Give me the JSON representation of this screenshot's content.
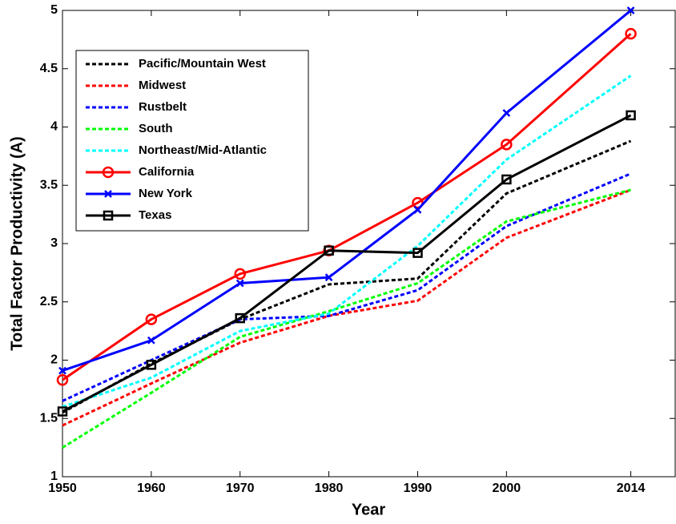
{
  "chart_data": {
    "type": "line",
    "x_label": "Year",
    "y_label": "Total Factor Productivity (A)",
    "x": [
      1950,
      1960,
      1970,
      1980,
      1990,
      2000,
      2014
    ],
    "xlim": [
      1950,
      2019
    ],
    "xticks": [
      1950,
      1960,
      1970,
      1980,
      1990,
      2000,
      2014
    ],
    "ylim": [
      1,
      5
    ],
    "yticks": [
      1,
      1.5,
      2,
      2.5,
      3,
      3.5,
      4,
      4.5,
      5
    ],
    "legend": "upper left",
    "series": [
      {
        "name": "Pacific/Mountain West",
        "color": "#000000",
        "style": "dashed",
        "marker": "none",
        "values": [
          1.55,
          1.97,
          2.35,
          2.65,
          2.7,
          3.43,
          3.88
        ]
      },
      {
        "name": "Midwest",
        "color": "#ff0000",
        "style": "dashed",
        "marker": "none",
        "values": [
          1.44,
          1.8,
          2.15,
          2.38,
          2.51,
          3.05,
          3.46
        ]
      },
      {
        "name": "Rustbelt",
        "color": "#0000ff",
        "style": "dashed",
        "marker": "none",
        "values": [
          1.65,
          2.0,
          2.35,
          2.38,
          2.6,
          3.15,
          3.6
        ]
      },
      {
        "name": "South",
        "color": "#00ff00",
        "style": "dashed",
        "marker": "none",
        "values": [
          1.25,
          1.72,
          2.2,
          2.42,
          2.66,
          3.19,
          3.46
        ]
      },
      {
        "name": "Northeast/Mid-Atlantic",
        "color": "#00ffff",
        "style": "dashed",
        "marker": "none",
        "values": [
          1.6,
          1.85,
          2.25,
          2.4,
          2.98,
          3.72,
          4.44
        ]
      },
      {
        "name": "California",
        "color": "#ff0000",
        "style": "solid",
        "marker": "circle",
        "values": [
          1.83,
          2.35,
          2.74,
          2.94,
          3.35,
          3.85,
          4.8
        ]
      },
      {
        "name": "New York",
        "color": "#0000ff",
        "style": "solid",
        "marker": "x",
        "values": [
          1.91,
          2.17,
          2.66,
          2.71,
          3.29,
          4.12,
          5.0
        ]
      },
      {
        "name": "Texas",
        "color": "#000000",
        "style": "solid",
        "marker": "square",
        "values": [
          1.56,
          1.96,
          2.36,
          2.94,
          2.92,
          3.55,
          4.1
        ]
      }
    ]
  }
}
